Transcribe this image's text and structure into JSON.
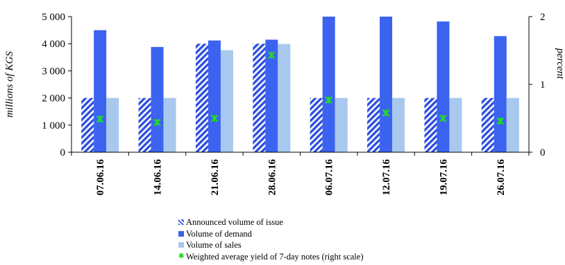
{
  "chart_data": {
    "type": "bar",
    "categories": [
      "07.06.16",
      "14.06.16",
      "21.06.16",
      "28.06.16",
      "06.07.16",
      "12.07.16",
      "19.07.16",
      "26.07.16"
    ],
    "series": [
      {
        "name": "Announced volume of issue",
        "values": [
          2000,
          2000,
          4000,
          4000,
          2000,
          2000,
          2000,
          2000
        ],
        "color": "#2f4fe0",
        "pattern": "diagonal-stripes"
      },
      {
        "name": "Volume of demand",
        "values": [
          4500,
          3880,
          4120,
          4150,
          5000,
          5000,
          4820,
          4280
        ],
        "color": "#3b63f0"
      },
      {
        "name": "Volume of sales",
        "values": [
          2000,
          2000,
          3760,
          3990,
          2000,
          2000,
          2000,
          2000
        ],
        "color": "#a8c8ee"
      },
      {
        "name": "Weighted average yield of 7-day notes (right scale)",
        "values": [
          0.49,
          0.44,
          0.5,
          1.43,
          0.77,
          0.58,
          0.5,
          0.46
        ],
        "color": "#22dd22",
        "axis": "right",
        "marker": "x"
      }
    ],
    "ylabel": "millions of KGS",
    "ylabel_right": "percent",
    "ylim": [
      0,
      5000
    ],
    "ylim_right": [
      0,
      2
    ],
    "yticks": [
      "0",
      "1 000",
      "2 000",
      "3 000",
      "4 000",
      "5 000"
    ],
    "yticks_right": [
      "0",
      "1",
      "2"
    ],
    "legend_position": "bottom",
    "grid": false
  }
}
